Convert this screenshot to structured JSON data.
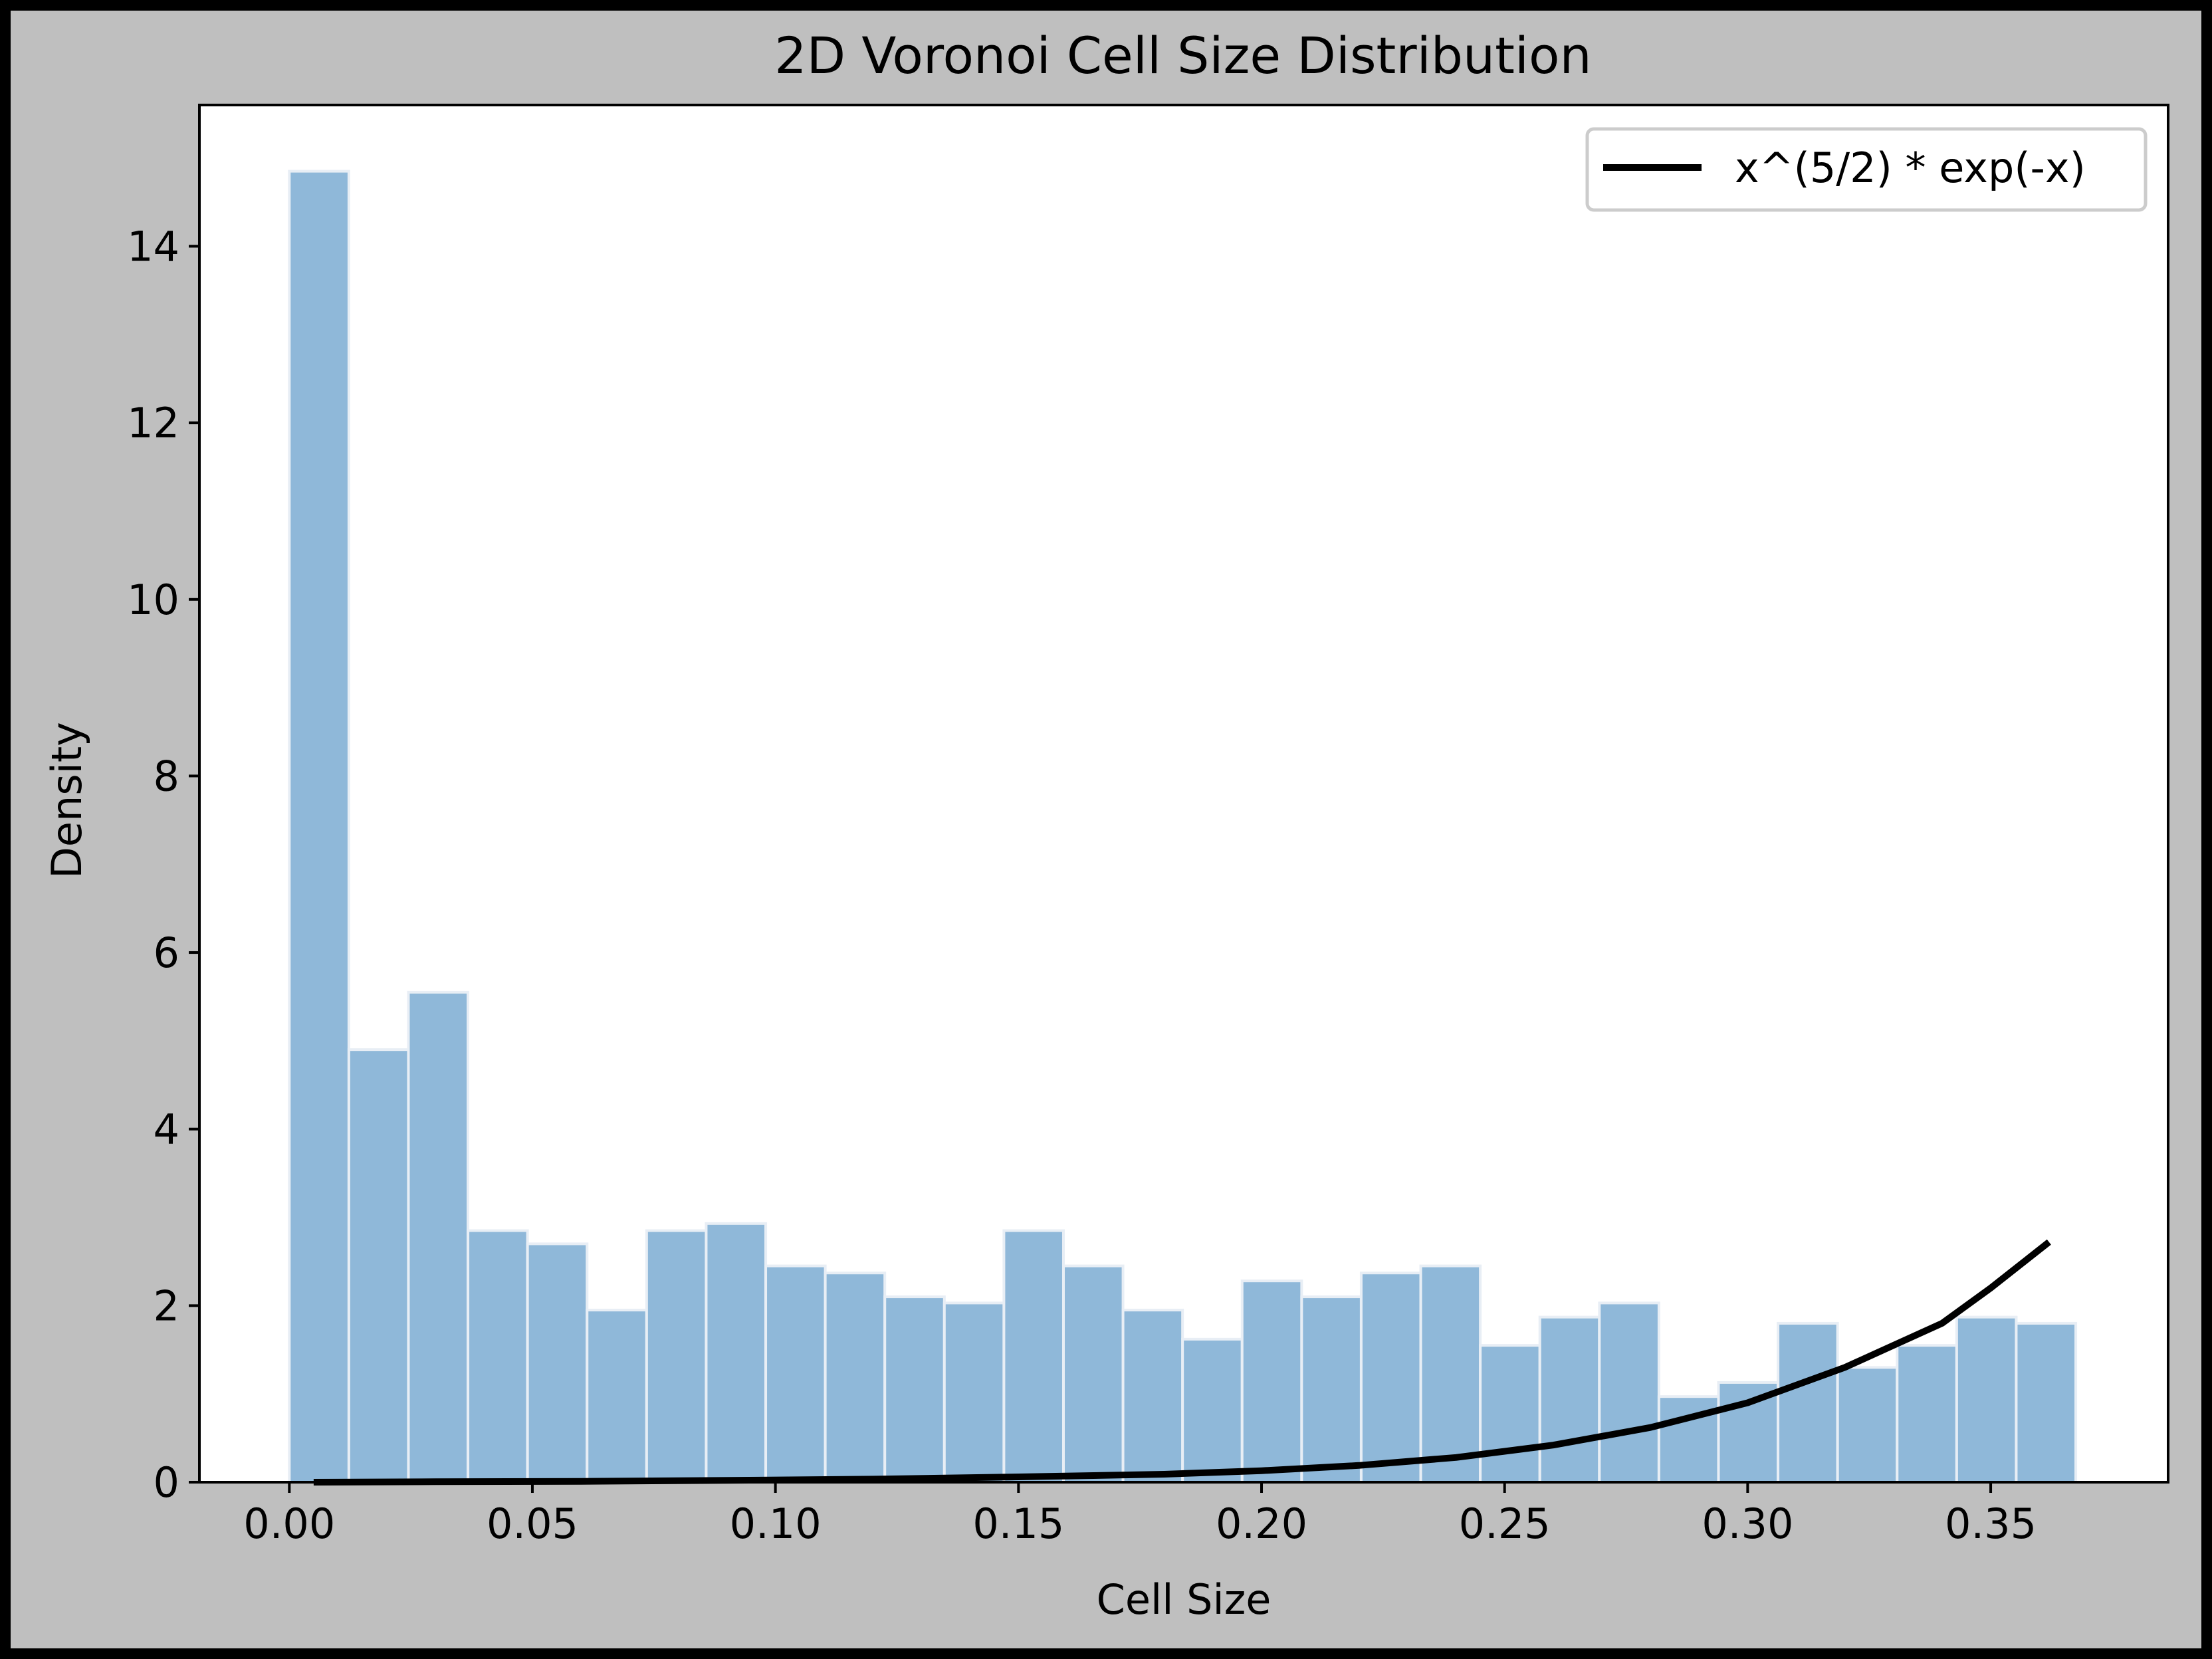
{
  "colors": {
    "figure_background": "#bfbfbf",
    "figure_border": "#000000",
    "plot_background": "#ffffff",
    "bar_fill": "#8fb8d9",
    "bar_edge": "#e8eef5",
    "curve": "#000000"
  },
  "chart_data": {
    "type": "bar",
    "title": "2D Voronoi Cell Size Distribution",
    "xlabel": "Cell Size",
    "ylabel": "Density",
    "xlim": [
      -0.0185,
      0.3865
    ],
    "ylim": [
      0,
      15.6
    ],
    "xticks": [
      0.0,
      0.05,
      0.1,
      0.15,
      0.2,
      0.25,
      0.3,
      0.35
    ],
    "xtick_labels": [
      "0.00",
      "0.05",
      "0.10",
      "0.15",
      "0.20",
      "0.25",
      "0.30",
      "0.35"
    ],
    "yticks": [
      0,
      2,
      4,
      6,
      8,
      10,
      12,
      14
    ],
    "ytick_labels": [
      "0",
      "2",
      "4",
      "6",
      "8",
      "10",
      "12",
      "14"
    ],
    "grid": false,
    "legend_position": "top-right",
    "histogram": {
      "bin_start": 0.0,
      "bin_width": 0.01225,
      "values": [
        14.85,
        4.9,
        5.55,
        2.85,
        2.7,
        1.95,
        2.85,
        2.93,
        2.45,
        2.37,
        2.1,
        2.03,
        2.85,
        2.45,
        1.95,
        1.62,
        2.28,
        2.1,
        2.37,
        2.45,
        1.55,
        1.87,
        2.03,
        0.97,
        1.13,
        1.8,
        1.3,
        1.55,
        1.87,
        1.8
      ]
    },
    "series": [
      {
        "name": "x^(5/2) * exp(-x)",
        "x": [
          0.005,
          0.03,
          0.06,
          0.09,
          0.12,
          0.15,
          0.18,
          0.2,
          0.22,
          0.24,
          0.26,
          0.28,
          0.3,
          0.32,
          0.34,
          0.35,
          0.362
        ],
        "y": [
          0.0,
          0.005,
          0.01,
          0.02,
          0.035,
          0.06,
          0.09,
          0.13,
          0.19,
          0.28,
          0.42,
          0.62,
          0.9,
          1.3,
          1.8,
          2.2,
          2.72
        ]
      }
    ]
  }
}
